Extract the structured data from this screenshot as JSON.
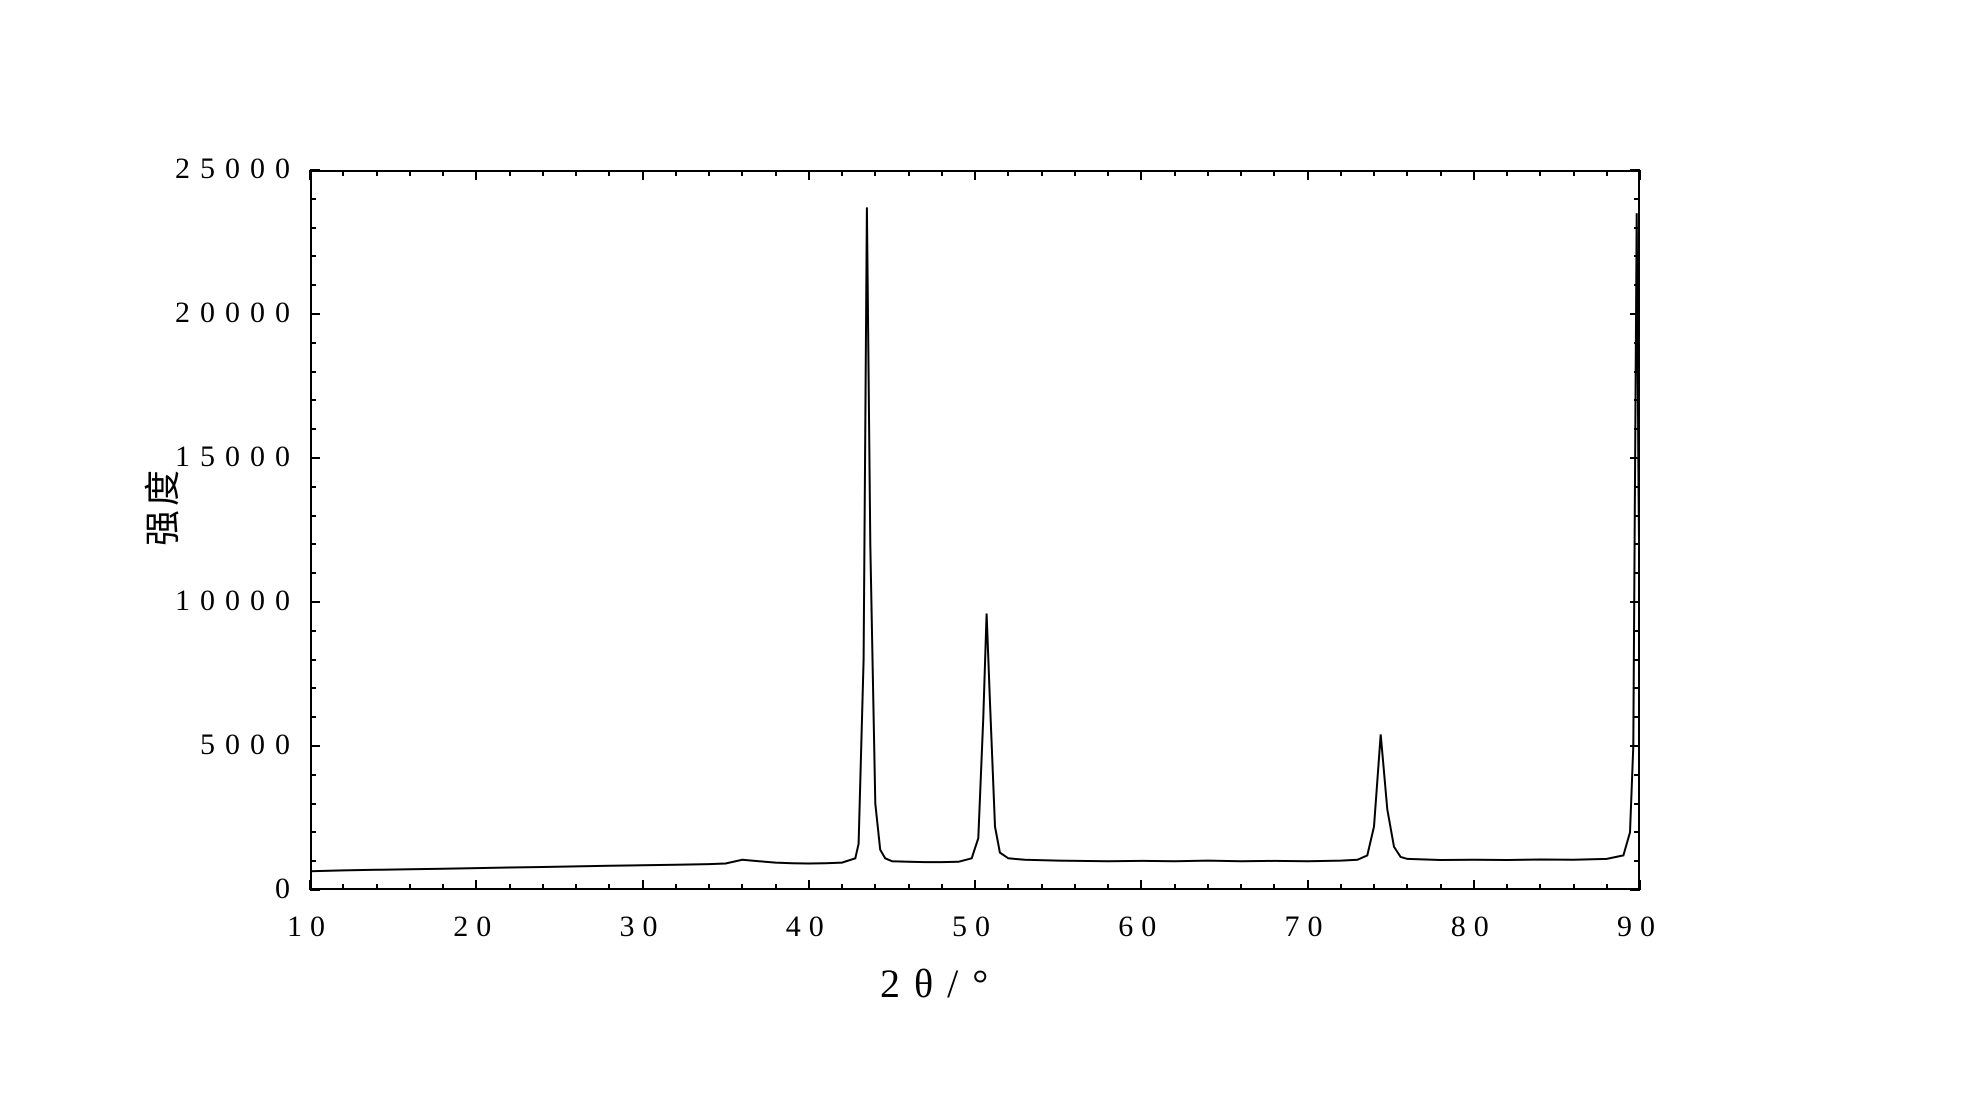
{
  "chart": {
    "type": "line",
    "xlabel": "2θ/°",
    "ylabel": "强度",
    "title_fontsize": 36,
    "label_fontsize": 36,
    "tick_fontsize": 30,
    "xlim": [
      10,
      90
    ],
    "ylim": [
      0,
      25000
    ],
    "xtick_major_step": 10,
    "ytick_major_step": 5000,
    "xtick_minor_step": 2,
    "ytick_minor_step": 1000,
    "background_color": "#ffffff",
    "axis_color": "#000000",
    "line_color": "#000000",
    "line_width": 2,
    "xtick_labels": [
      "10",
      "20",
      "30",
      "40",
      "50",
      "60",
      "70",
      "80",
      "90"
    ],
    "ytick_labels": [
      "0",
      "5000",
      "10000",
      "15000",
      "20000",
      "25000"
    ],
    "peaks": [
      {
        "x": 43.5,
        "intensity": 23700
      },
      {
        "x": 50.7,
        "intensity": 9600
      },
      {
        "x": 74.4,
        "intensity": 5400
      },
      {
        "x": 89.8,
        "intensity": 23500
      }
    ],
    "baseline_intensity": 900,
    "data_points": [
      [
        10,
        650
      ],
      [
        12,
        680
      ],
      [
        14,
        700
      ],
      [
        16,
        720
      ],
      [
        18,
        740
      ],
      [
        20,
        760
      ],
      [
        22,
        780
      ],
      [
        24,
        800
      ],
      [
        26,
        820
      ],
      [
        28,
        840
      ],
      [
        30,
        860
      ],
      [
        32,
        880
      ],
      [
        34,
        900
      ],
      [
        35,
        920
      ],
      [
        36,
        1050
      ],
      [
        37,
        1000
      ],
      [
        38,
        950
      ],
      [
        39,
        930
      ],
      [
        40,
        920
      ],
      [
        41,
        930
      ],
      [
        42,
        950
      ],
      [
        42.8,
        1100
      ],
      [
        43.0,
        1600
      ],
      [
        43.3,
        8000
      ],
      [
        43.5,
        23700
      ],
      [
        43.7,
        12000
      ],
      [
        44.0,
        3000
      ],
      [
        44.3,
        1400
      ],
      [
        44.6,
        1100
      ],
      [
        45,
        1000
      ],
      [
        46,
        980
      ],
      [
        47,
        970
      ],
      [
        48,
        970
      ],
      [
        49,
        980
      ],
      [
        49.8,
        1100
      ],
      [
        50.2,
        1800
      ],
      [
        50.5,
        6000
      ],
      [
        50.7,
        9600
      ],
      [
        50.9,
        6500
      ],
      [
        51.2,
        2200
      ],
      [
        51.5,
        1300
      ],
      [
        52,
        1100
      ],
      [
        53,
        1050
      ],
      [
        55,
        1020
      ],
      [
        58,
        1000
      ],
      [
        60,
        1010
      ],
      [
        62,
        1000
      ],
      [
        64,
        1020
      ],
      [
        66,
        1000
      ],
      [
        68,
        1010
      ],
      [
        70,
        1000
      ],
      [
        72,
        1020
      ],
      [
        73,
        1050
      ],
      [
        73.6,
        1200
      ],
      [
        74.0,
        2200
      ],
      [
        74.4,
        5400
      ],
      [
        74.8,
        2800
      ],
      [
        75.2,
        1500
      ],
      [
        75.6,
        1150
      ],
      [
        76,
        1080
      ],
      [
        78,
        1040
      ],
      [
        80,
        1050
      ],
      [
        82,
        1040
      ],
      [
        84,
        1060
      ],
      [
        86,
        1050
      ],
      [
        88,
        1080
      ],
      [
        89,
        1200
      ],
      [
        89.4,
        2000
      ],
      [
        89.6,
        5000
      ],
      [
        89.8,
        23500
      ],
      [
        89.9,
        15000
      ],
      [
        90,
        8000
      ]
    ]
  }
}
